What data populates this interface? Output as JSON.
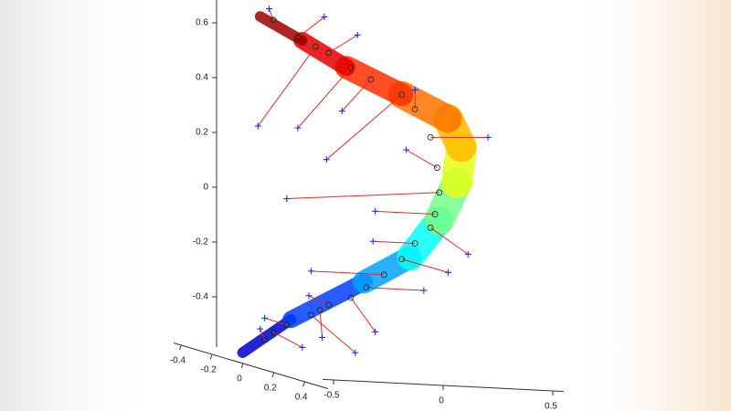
{
  "chart_data": {
    "type": "surface3d",
    "zlim": [
      -0.58,
      0.68
    ],
    "zticks": [
      0.6,
      0.4,
      0.2,
      0,
      -0.2,
      -0.4
    ],
    "xlim": [
      -0.45,
      0.55
    ],
    "xticks": [
      -0.4,
      -0.2,
      0,
      0.2,
      0.4
    ],
    "ylim": [
      -0.55,
      0.55
    ],
    "yticks": [
      -0.5,
      0,
      0.5
    ],
    "surface": {
      "y": [
        -0.49,
        -0.27,
        0.06,
        0.27,
        0.4,
        0.48,
        0.5,
        0.44,
        0.23,
        -0.02,
        -0.22,
        -0.41
      ],
      "z": [
        -0.55,
        -0.42,
        -0.27,
        -0.17,
        -0.03,
        0.11,
        0.24,
        0.34,
        0.42,
        0.51,
        0.6,
        0.68
      ]
    },
    "observed": {
      "color": "#2b2bd0",
      "y": [
        -0.37,
        -0.12,
        -0.42,
        0.03,
        -0.24,
        -0.04,
        -0.11,
        0.29,
        0.62,
        0.25,
        -0.29,
        0.11,
        0.53,
        0.1,
        0.44,
        -0.18,
        0.33,
        0.11,
        -0.19,
        0.02,
        -0.39,
        -0.22,
        -0.41,
        -0.13
      ],
      "z": [
        0.71,
        0.69,
        0.28,
        0.63,
        0.28,
        0.35,
        0.17,
        0.44,
        0.28,
        0.22,
        0.02,
        -0.01,
        -0.15,
        -0.12,
        -0.22,
        -0.24,
        -0.29,
        -0.45,
        -0.33,
        -0.53,
        -0.42,
        -0.52,
        -0.46,
        -0.48
      ]
    },
    "fitted": {
      "color": "#222222",
      "y": [
        -0.35,
        -0.24,
        -0.16,
        -0.1,
        0.0,
        0.09,
        0.23,
        0.29,
        0.36,
        0.39,
        0.4,
        0.38,
        0.36,
        0.29,
        0.23,
        0.15,
        0.07,
        0.0,
        -0.1,
        -0.18,
        -0.29,
        -0.35,
        -0.39,
        -0.14
      ],
      "z": [
        0.67,
        0.61,
        0.58,
        0.56,
        0.51,
        0.47,
        0.42,
        0.37,
        0.27,
        0.16,
        0.07,
        -0.01,
        -0.06,
        -0.12,
        -0.18,
        -0.24,
        -0.29,
        -0.33,
        -0.36,
        -0.4,
        -0.44,
        -0.47,
        -0.5,
        -0.38
      ]
    },
    "residual_color": "#e02a2a"
  }
}
